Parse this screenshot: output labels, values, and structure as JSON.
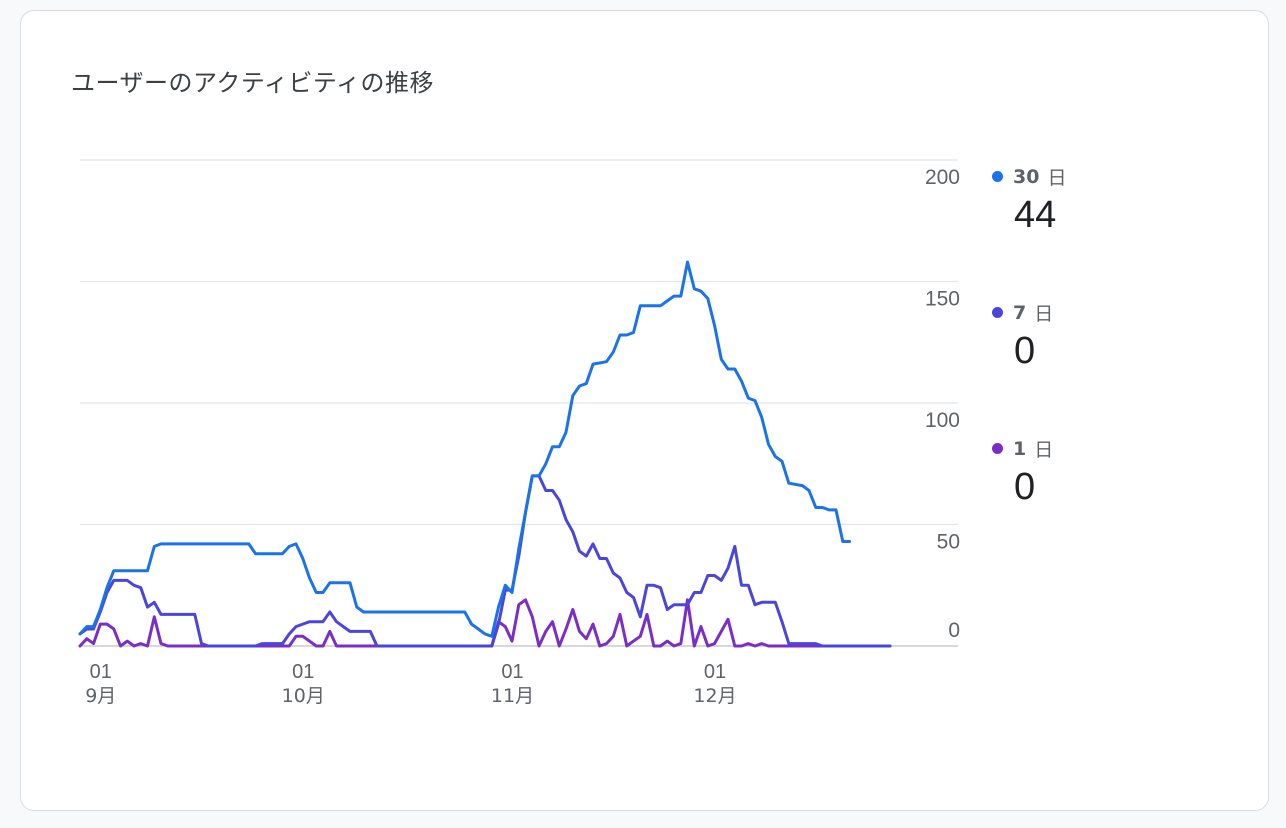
{
  "card": {
    "title": "ユーザーのアクティビティの推移"
  },
  "legend": [
    {
      "label_num": "30",
      "label_unit": "日",
      "value": "44",
      "color": "#1a73e8"
    },
    {
      "label_num": "7",
      "label_unit": "日",
      "value": "0",
      "color": "#4a46dc"
    },
    {
      "label_num": "1",
      "label_unit": "日",
      "value": "0",
      "color": "#7b2ec5"
    }
  ],
  "chart_data": {
    "type": "line",
    "title": "ユーザーのアクティビティの推移",
    "xlabel": "",
    "ylabel": "",
    "ylim": [
      0,
      200
    ],
    "y_ticks": [
      "0",
      "50",
      "100",
      "150",
      "200"
    ],
    "x_ticks": [
      {
        "day": "01",
        "month": "9月"
      },
      {
        "day": "01",
        "month": "10月"
      },
      {
        "day": "01",
        "month": "11月"
      },
      {
        "day": "01",
        "month": "12月"
      }
    ],
    "x_start": "2023-08-31",
    "x_end": "2023-12-29",
    "grid": true,
    "legend_position": "right",
    "series": [
      {
        "name": "30 日",
        "color": "#1a73e8",
        "points": [
          [
            "2023-08-31",
            5
          ],
          [
            "2023-09-01",
            8
          ],
          [
            "2023-09-02",
            8
          ],
          [
            "2023-09-03",
            15
          ],
          [
            "2023-09-04",
            24
          ],
          [
            "2023-09-05",
            31
          ],
          [
            "2023-09-06",
            31
          ],
          [
            "2023-09-10",
            31
          ],
          [
            "2023-09-11",
            41
          ],
          [
            "2023-09-12",
            42
          ],
          [
            "2023-09-25",
            42
          ],
          [
            "2023-09-26",
            38
          ],
          [
            "2023-09-30",
            38
          ],
          [
            "2023-10-01",
            41
          ],
          [
            "2023-10-02",
            42
          ],
          [
            "2023-10-03",
            36
          ],
          [
            "2023-10-04",
            28
          ],
          [
            "2023-10-05",
            22
          ],
          [
            "2023-10-06",
            22
          ],
          [
            "2023-10-07",
            26
          ],
          [
            "2023-10-10",
            26
          ],
          [
            "2023-10-11",
            16
          ],
          [
            "2023-10-12",
            14
          ],
          [
            "2023-10-27",
            14
          ],
          [
            "2023-10-28",
            9
          ],
          [
            "2023-10-29",
            7
          ],
          [
            "2023-10-30",
            5
          ],
          [
            "2023-10-31",
            4
          ],
          [
            "2023-11-01",
            16
          ],
          [
            "2023-11-02",
            25
          ],
          [
            "2023-11-03",
            22
          ],
          [
            "2023-11-04",
            40
          ],
          [
            "2023-11-05",
            55
          ],
          [
            "2023-11-06",
            70
          ],
          [
            "2023-11-07",
            70
          ],
          [
            "2023-11-08",
            75
          ],
          [
            "2023-11-09",
            82
          ],
          [
            "2023-11-10",
            82
          ],
          [
            "2023-11-11",
            88
          ],
          [
            "2023-11-12",
            103
          ],
          [
            "2023-11-13",
            107
          ],
          [
            "2023-11-14",
            108
          ],
          [
            "2023-11-15",
            116
          ],
          [
            "2023-11-17",
            117
          ],
          [
            "2023-11-18",
            121
          ],
          [
            "2023-11-19",
            128
          ],
          [
            "2023-11-20",
            128
          ],
          [
            "2023-11-21",
            129
          ],
          [
            "2023-11-22",
            140
          ],
          [
            "2023-11-25",
            140
          ],
          [
            "2023-11-26",
            142
          ],
          [
            "2023-11-27",
            144
          ],
          [
            "2023-11-28",
            144
          ],
          [
            "2023-11-29",
            158
          ],
          [
            "2023-11-30",
            147
          ],
          [
            "2023-12-01",
            146
          ],
          [
            "2023-12-02",
            143
          ],
          [
            "2023-12-03",
            132
          ],
          [
            "2023-12-04",
            118
          ],
          [
            "2023-12-05",
            114
          ],
          [
            "2023-12-06",
            114
          ],
          [
            "2023-12-07",
            109
          ],
          [
            "2023-12-08",
            102
          ],
          [
            "2023-12-09",
            101
          ],
          [
            "2023-12-10",
            94
          ],
          [
            "2023-12-11",
            83
          ],
          [
            "2023-12-12",
            78
          ],
          [
            "2023-12-13",
            76
          ],
          [
            "2023-12-14",
            67
          ],
          [
            "2023-12-16",
            66
          ],
          [
            "2023-12-17",
            64
          ],
          [
            "2023-12-18",
            57
          ],
          [
            "2023-12-19",
            57
          ],
          [
            "2023-12-20",
            56
          ],
          [
            "2023-12-21",
            56
          ],
          [
            "2023-12-22",
            43
          ],
          [
            "2023-12-23",
            43
          ]
        ]
      },
      {
        "name": "7 日",
        "color": "#4a46dc",
        "points": [
          [
            "2023-08-31",
            5
          ],
          [
            "2023-09-01",
            7
          ],
          [
            "2023-09-02",
            7
          ],
          [
            "2023-09-03",
            14
          ],
          [
            "2023-09-04",
            22
          ],
          [
            "2023-09-05",
            27
          ],
          [
            "2023-09-06",
            27
          ],
          [
            "2023-09-07",
            27
          ],
          [
            "2023-09-08",
            25
          ],
          [
            "2023-09-09",
            24
          ],
          [
            "2023-09-10",
            16
          ],
          [
            "2023-09-11",
            18
          ],
          [
            "2023-09-12",
            13
          ],
          [
            "2023-09-17",
            13
          ],
          [
            "2023-09-18",
            1
          ],
          [
            "2023-09-19",
            0
          ],
          [
            "2023-09-26",
            0
          ],
          [
            "2023-09-27",
            1
          ],
          [
            "2023-09-30",
            1
          ],
          [
            "2023-10-01",
            5
          ],
          [
            "2023-10-02",
            8
          ],
          [
            "2023-10-03",
            9
          ],
          [
            "2023-10-04",
            10
          ],
          [
            "2023-10-06",
            10
          ],
          [
            "2023-10-07",
            14
          ],
          [
            "2023-10-08",
            10
          ],
          [
            "2023-10-09",
            8
          ],
          [
            "2023-10-10",
            6
          ],
          [
            "2023-10-13",
            6
          ],
          [
            "2023-10-14",
            0
          ],
          [
            "2023-10-31",
            0
          ],
          [
            "2023-11-01",
            9
          ],
          [
            "2023-11-02",
            23
          ],
          [
            "2023-11-03",
            23
          ],
          [
            "2023-11-04",
            37
          ],
          [
            "2023-11-05",
            55
          ],
          [
            "2023-11-06",
            70
          ],
          [
            "2023-11-07",
            70
          ],
          [
            "2023-11-08",
            64
          ],
          [
            "2023-11-09",
            64
          ],
          [
            "2023-11-10",
            60
          ],
          [
            "2023-11-11",
            52
          ],
          [
            "2023-11-12",
            47
          ],
          [
            "2023-11-13",
            39
          ],
          [
            "2023-11-14",
            37
          ],
          [
            "2023-11-15",
            42
          ],
          [
            "2023-11-16",
            36
          ],
          [
            "2023-11-17",
            36
          ],
          [
            "2023-11-18",
            30
          ],
          [
            "2023-11-19",
            28
          ],
          [
            "2023-11-20",
            22
          ],
          [
            "2023-11-21",
            20
          ],
          [
            "2023-11-22",
            12
          ],
          [
            "2023-11-23",
            25
          ],
          [
            "2023-11-24",
            25
          ],
          [
            "2023-11-25",
            24
          ],
          [
            "2023-11-26",
            15
          ],
          [
            "2023-11-27",
            17
          ],
          [
            "2023-11-29",
            17
          ],
          [
            "2023-11-30",
            22
          ],
          [
            "2023-12-01",
            22
          ],
          [
            "2023-12-02",
            29
          ],
          [
            "2023-12-03",
            29
          ],
          [
            "2023-12-04",
            27
          ],
          [
            "2023-12-05",
            32
          ],
          [
            "2023-12-06",
            41
          ],
          [
            "2023-12-07",
            25
          ],
          [
            "2023-12-08",
            25
          ],
          [
            "2023-12-09",
            17
          ],
          [
            "2023-12-10",
            18
          ],
          [
            "2023-12-11",
            18
          ],
          [
            "2023-12-12",
            18
          ],
          [
            "2023-12-13",
            10
          ],
          [
            "2023-12-14",
            1
          ],
          [
            "2023-12-18",
            1
          ],
          [
            "2023-12-19",
            0
          ],
          [
            "2023-12-29",
            0
          ]
        ]
      },
      {
        "name": "1 日",
        "color": "#7b2ec5",
        "points": [
          [
            "2023-08-31",
            0
          ],
          [
            "2023-09-01",
            3
          ],
          [
            "2023-09-02",
            1
          ],
          [
            "2023-09-03",
            9
          ],
          [
            "2023-09-04",
            9
          ],
          [
            "2023-09-05",
            7
          ],
          [
            "2023-09-06",
            0
          ],
          [
            "2023-09-07",
            2
          ],
          [
            "2023-09-08",
            0
          ],
          [
            "2023-09-09",
            1
          ],
          [
            "2023-09-10",
            0
          ],
          [
            "2023-09-11",
            12
          ],
          [
            "2023-09-12",
            1
          ],
          [
            "2023-09-13",
            0
          ],
          [
            "2023-10-01",
            0
          ],
          [
            "2023-10-02",
            4
          ],
          [
            "2023-10-03",
            4
          ],
          [
            "2023-10-04",
            2
          ],
          [
            "2023-10-05",
            0
          ],
          [
            "2023-10-06",
            0
          ],
          [
            "2023-10-07",
            6
          ],
          [
            "2023-10-08",
            0
          ],
          [
            "2023-10-31",
            0
          ],
          [
            "2023-11-01",
            10
          ],
          [
            "2023-11-02",
            8
          ],
          [
            "2023-11-03",
            2
          ],
          [
            "2023-11-04",
            17
          ],
          [
            "2023-11-05",
            19
          ],
          [
            "2023-11-06",
            12
          ],
          [
            "2023-11-07",
            0
          ],
          [
            "2023-11-08",
            6
          ],
          [
            "2023-11-09",
            10
          ],
          [
            "2023-11-10",
            0
          ],
          [
            "2023-11-11",
            7
          ],
          [
            "2023-11-12",
            15
          ],
          [
            "2023-11-13",
            6
          ],
          [
            "2023-11-14",
            3
          ],
          [
            "2023-11-15",
            9
          ],
          [
            "2023-11-16",
            0
          ],
          [
            "2023-11-17",
            1
          ],
          [
            "2023-11-18",
            4
          ],
          [
            "2023-11-19",
            13
          ],
          [
            "2023-11-20",
            0
          ],
          [
            "2023-11-21",
            2
          ],
          [
            "2023-11-22",
            4
          ],
          [
            "2023-11-23",
            13
          ],
          [
            "2023-11-24",
            0
          ],
          [
            "2023-11-25",
            0
          ],
          [
            "2023-11-26",
            2
          ],
          [
            "2023-11-27",
            0
          ],
          [
            "2023-11-28",
            1
          ],
          [
            "2023-11-29",
            19
          ],
          [
            "2023-11-30",
            0
          ],
          [
            "2023-12-01",
            8
          ],
          [
            "2023-12-02",
            0
          ],
          [
            "2023-12-03",
            1
          ],
          [
            "2023-12-04",
            6
          ],
          [
            "2023-12-05",
            11
          ],
          [
            "2023-12-06",
            0
          ],
          [
            "2023-12-07",
            0
          ],
          [
            "2023-12-08",
            1
          ],
          [
            "2023-12-09",
            0
          ],
          [
            "2023-12-10",
            1
          ],
          [
            "2023-12-11",
            0
          ],
          [
            "2023-12-12",
            0
          ],
          [
            "2023-12-29",
            0
          ]
        ]
      }
    ]
  }
}
